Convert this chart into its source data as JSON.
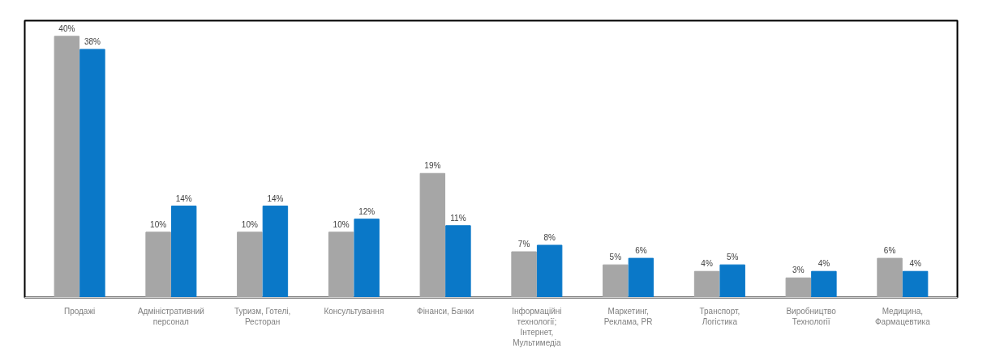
{
  "chart_data": {
    "type": "bar",
    "categories": [
      "Продажі",
      "Адміністративний\nперсонал",
      "Туризм, Готелі,\nРесторан",
      "Консультування",
      "Фінанси, Банки",
      "Інформаційні\nтехнології;\nІнтернет,\nМультимедіа",
      "Маркетинг,\nРеклама, PR",
      "Транспорт,\nЛогістика",
      "Виробництво\nТехнології",
      "Медицина,\nФармацевтика"
    ],
    "series": [
      {
        "color": "#a6a6a6",
        "values": [
          40,
          10,
          10,
          10,
          19,
          7,
          5,
          4,
          3,
          6
        ],
        "value_labels": [
          "40%",
          "10%",
          "10%",
          "10%",
          "19%",
          "7%",
          "5%",
          "4%",
          "3%",
          "6%"
        ]
      },
      {
        "color": "#0a78c8",
        "values": [
          38,
          14,
          14,
          12,
          11,
          8,
          6,
          5,
          4,
          4
        ],
        "value_labels": [
          "38%",
          "14%",
          "14%",
          "12%",
          "11%",
          "8%",
          "6%",
          "5%",
          "4%",
          "4%"
        ]
      }
    ]
  }
}
